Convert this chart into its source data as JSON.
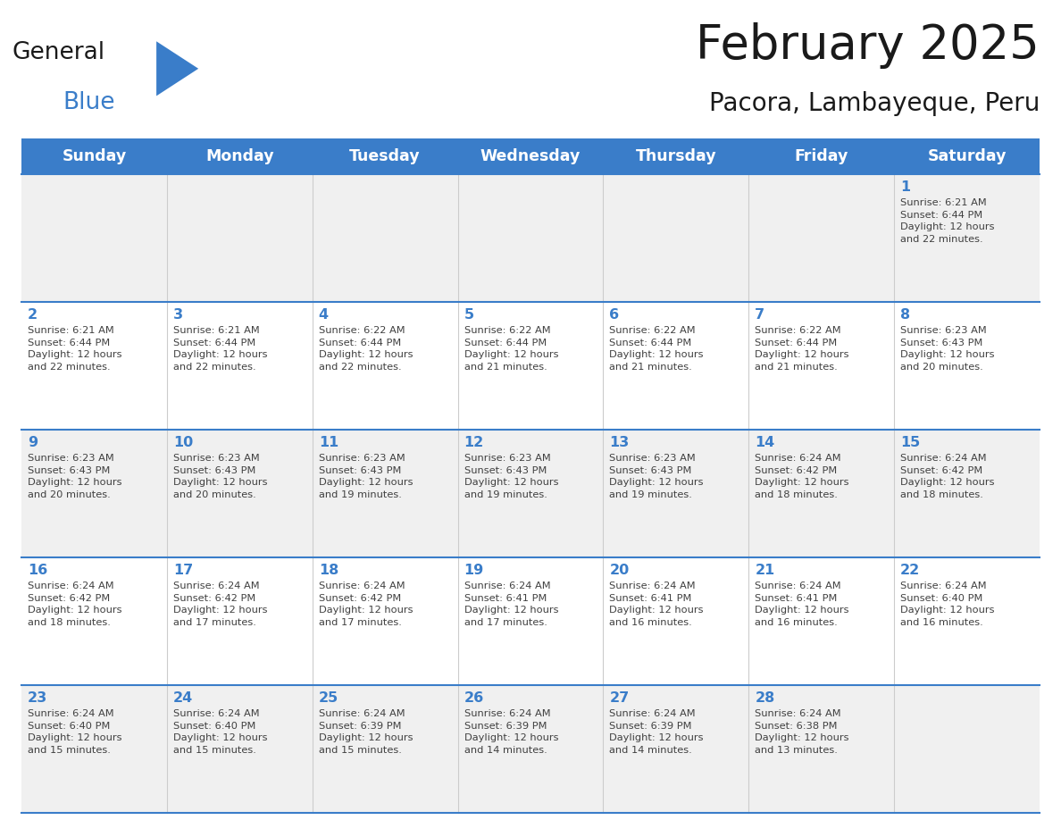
{
  "title": "February 2025",
  "subtitle": "Pacora, Lambayeque, Peru",
  "header_bg": "#3A7DC9",
  "header_text_color": "#FFFFFF",
  "cell_bg_odd": "#F0F0F0",
  "cell_bg_even": "#FFFFFF",
  "day_number_color": "#3A7DC9",
  "info_text_color": "#404040",
  "border_color": "#3A7DC9",
  "logo_black": "#1a1a1a",
  "logo_blue": "#3A7DC9",
  "days_of_week": [
    "Sunday",
    "Monday",
    "Tuesday",
    "Wednesday",
    "Thursday",
    "Friday",
    "Saturday"
  ],
  "weeks": [
    [
      {
        "day": null,
        "sunrise": null,
        "sunset": null,
        "daylight": null
      },
      {
        "day": null,
        "sunrise": null,
        "sunset": null,
        "daylight": null
      },
      {
        "day": null,
        "sunrise": null,
        "sunset": null,
        "daylight": null
      },
      {
        "day": null,
        "sunrise": null,
        "sunset": null,
        "daylight": null
      },
      {
        "day": null,
        "sunrise": null,
        "sunset": null,
        "daylight": null
      },
      {
        "day": null,
        "sunrise": null,
        "sunset": null,
        "daylight": null
      },
      {
        "day": 1,
        "sunrise": "6:21 AM",
        "sunset": "6:44 PM",
        "daylight": "12 hours\nand 22 minutes."
      }
    ],
    [
      {
        "day": 2,
        "sunrise": "6:21 AM",
        "sunset": "6:44 PM",
        "daylight": "12 hours\nand 22 minutes."
      },
      {
        "day": 3,
        "sunrise": "6:21 AM",
        "sunset": "6:44 PM",
        "daylight": "12 hours\nand 22 minutes."
      },
      {
        "day": 4,
        "sunrise": "6:22 AM",
        "sunset": "6:44 PM",
        "daylight": "12 hours\nand 22 minutes."
      },
      {
        "day": 5,
        "sunrise": "6:22 AM",
        "sunset": "6:44 PM",
        "daylight": "12 hours\nand 21 minutes."
      },
      {
        "day": 6,
        "sunrise": "6:22 AM",
        "sunset": "6:44 PM",
        "daylight": "12 hours\nand 21 minutes."
      },
      {
        "day": 7,
        "sunrise": "6:22 AM",
        "sunset": "6:44 PM",
        "daylight": "12 hours\nand 21 minutes."
      },
      {
        "day": 8,
        "sunrise": "6:23 AM",
        "sunset": "6:43 PM",
        "daylight": "12 hours\nand 20 minutes."
      }
    ],
    [
      {
        "day": 9,
        "sunrise": "6:23 AM",
        "sunset": "6:43 PM",
        "daylight": "12 hours\nand 20 minutes."
      },
      {
        "day": 10,
        "sunrise": "6:23 AM",
        "sunset": "6:43 PM",
        "daylight": "12 hours\nand 20 minutes."
      },
      {
        "day": 11,
        "sunrise": "6:23 AM",
        "sunset": "6:43 PM",
        "daylight": "12 hours\nand 19 minutes."
      },
      {
        "day": 12,
        "sunrise": "6:23 AM",
        "sunset": "6:43 PM",
        "daylight": "12 hours\nand 19 minutes."
      },
      {
        "day": 13,
        "sunrise": "6:23 AM",
        "sunset": "6:43 PM",
        "daylight": "12 hours\nand 19 minutes."
      },
      {
        "day": 14,
        "sunrise": "6:24 AM",
        "sunset": "6:42 PM",
        "daylight": "12 hours\nand 18 minutes."
      },
      {
        "day": 15,
        "sunrise": "6:24 AM",
        "sunset": "6:42 PM",
        "daylight": "12 hours\nand 18 minutes."
      }
    ],
    [
      {
        "day": 16,
        "sunrise": "6:24 AM",
        "sunset": "6:42 PM",
        "daylight": "12 hours\nand 18 minutes."
      },
      {
        "day": 17,
        "sunrise": "6:24 AM",
        "sunset": "6:42 PM",
        "daylight": "12 hours\nand 17 minutes."
      },
      {
        "day": 18,
        "sunrise": "6:24 AM",
        "sunset": "6:42 PM",
        "daylight": "12 hours\nand 17 minutes."
      },
      {
        "day": 19,
        "sunrise": "6:24 AM",
        "sunset": "6:41 PM",
        "daylight": "12 hours\nand 17 minutes."
      },
      {
        "day": 20,
        "sunrise": "6:24 AM",
        "sunset": "6:41 PM",
        "daylight": "12 hours\nand 16 minutes."
      },
      {
        "day": 21,
        "sunrise": "6:24 AM",
        "sunset": "6:41 PM",
        "daylight": "12 hours\nand 16 minutes."
      },
      {
        "day": 22,
        "sunrise": "6:24 AM",
        "sunset": "6:40 PM",
        "daylight": "12 hours\nand 16 minutes."
      }
    ],
    [
      {
        "day": 23,
        "sunrise": "6:24 AM",
        "sunset": "6:40 PM",
        "daylight": "12 hours\nand 15 minutes."
      },
      {
        "day": 24,
        "sunrise": "6:24 AM",
        "sunset": "6:40 PM",
        "daylight": "12 hours\nand 15 minutes."
      },
      {
        "day": 25,
        "sunrise": "6:24 AM",
        "sunset": "6:39 PM",
        "daylight": "12 hours\nand 15 minutes."
      },
      {
        "day": 26,
        "sunrise": "6:24 AM",
        "sunset": "6:39 PM",
        "daylight": "12 hours\nand 14 minutes."
      },
      {
        "day": 27,
        "sunrise": "6:24 AM",
        "sunset": "6:39 PM",
        "daylight": "12 hours\nand 14 minutes."
      },
      {
        "day": 28,
        "sunrise": "6:24 AM",
        "sunset": "6:38 PM",
        "daylight": "12 hours\nand 13 minutes."
      },
      {
        "day": null,
        "sunrise": null,
        "sunset": null,
        "daylight": null
      }
    ]
  ]
}
